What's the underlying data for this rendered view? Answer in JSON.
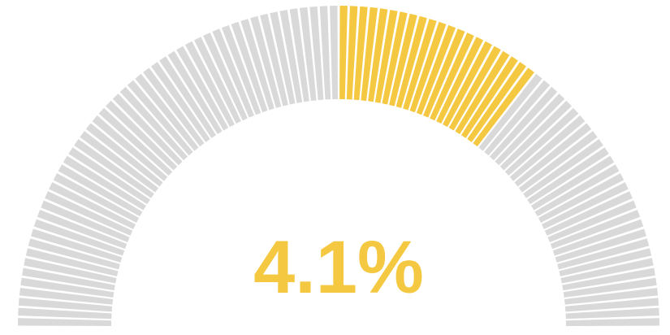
{
  "chart_data": {
    "type": "gauge",
    "value": 4.1,
    "value_label": "4.1%",
    "range": [
      -10,
      10
    ],
    "segments": 100,
    "fill_from": 0,
    "colors": {
      "filled": "#F5C842",
      "empty": "#D9D9D9",
      "label": "#F5C842"
    }
  }
}
